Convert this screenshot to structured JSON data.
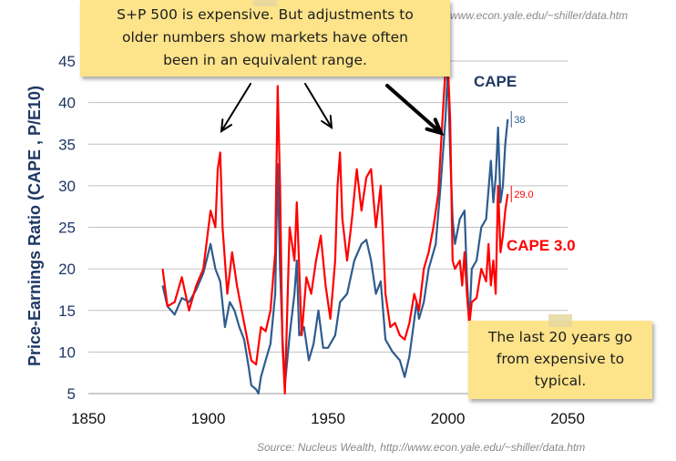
{
  "chart_data": {
    "type": "line",
    "title": "",
    "xlabel": "",
    "ylabel": "Price-Earnings Ratio (CAPE , P/E10)",
    "xlim": [
      1850,
      2050
    ],
    "ylim": [
      5,
      45
    ],
    "xticks": [
      "1850",
      "1900",
      "1950",
      "2000",
      "2050"
    ],
    "yticks": [
      "5",
      "10",
      "15",
      "20",
      "25",
      "30",
      "35",
      "40",
      "45"
    ],
    "grid": true,
    "series": [
      {
        "name": "CAPE",
        "color": "#2e5c8e",
        "end_label": "38",
        "points": [
          [
            1881,
            18
          ],
          [
            1883,
            15.5
          ],
          [
            1886,
            14.5
          ],
          [
            1889,
            16.5
          ],
          [
            1892,
            16
          ],
          [
            1895,
            17.5
          ],
          [
            1898,
            19.5
          ],
          [
            1901,
            23
          ],
          [
            1903,
            20
          ],
          [
            1905,
            18.5
          ],
          [
            1907,
            13
          ],
          [
            1909,
            16
          ],
          [
            1911,
            15
          ],
          [
            1913,
            13
          ],
          [
            1915,
            11.5
          ],
          [
            1917,
            8
          ],
          [
            1918,
            6
          ],
          [
            1920,
            5.5
          ],
          [
            1921,
            5
          ],
          [
            1922,
            7
          ],
          [
            1924,
            9
          ],
          [
            1926,
            11
          ],
          [
            1928,
            17
          ],
          [
            1929,
            32.6
          ],
          [
            1930,
            20
          ],
          [
            1931,
            12
          ],
          [
            1932,
            6
          ],
          [
            1934,
            12
          ],
          [
            1936,
            17
          ],
          [
            1937,
            21
          ],
          [
            1938,
            12
          ],
          [
            1940,
            13
          ],
          [
            1942,
            9
          ],
          [
            1944,
            11
          ],
          [
            1946,
            15
          ],
          [
            1948,
            10.5
          ],
          [
            1950,
            10.5
          ],
          [
            1953,
            12
          ],
          [
            1955,
            16
          ],
          [
            1958,
            17
          ],
          [
            1961,
            21
          ],
          [
            1964,
            23
          ],
          [
            1966,
            23.5
          ],
          [
            1968,
            21
          ],
          [
            1970,
            17
          ],
          [
            1972,
            18.5
          ],
          [
            1974,
            11.5
          ],
          [
            1977,
            10
          ],
          [
            1980,
            9
          ],
          [
            1982,
            7
          ],
          [
            1984,
            9.5
          ],
          [
            1987,
            16
          ],
          [
            1988,
            14
          ],
          [
            1990,
            16
          ],
          [
            1992,
            20
          ],
          [
            1995,
            23
          ],
          [
            1997,
            30
          ],
          [
            1999,
            38
          ],
          [
            2000,
            44
          ],
          [
            2001,
            34
          ],
          [
            2002,
            26
          ],
          [
            2003,
            23
          ],
          [
            2005,
            26
          ],
          [
            2007,
            27
          ],
          [
            2008,
            19
          ],
          [
            2009,
            13.3
          ],
          [
            2010,
            20
          ],
          [
            2012,
            21
          ],
          [
            2014,
            25
          ],
          [
            2016,
            26
          ],
          [
            2018,
            33
          ],
          [
            2019,
            28
          ],
          [
            2020,
            31
          ],
          [
            2021,
            37
          ],
          [
            2022,
            28
          ],
          [
            2023,
            30
          ],
          [
            2024,
            35
          ],
          [
            2025,
            38
          ]
        ]
      },
      {
        "name": "CAPE 3.0",
        "color": "#ff0000",
        "end_label": "29.0",
        "points": [
          [
            1881,
            20
          ],
          [
            1883,
            15.5
          ],
          [
            1886,
            16
          ],
          [
            1889,
            19
          ],
          [
            1892,
            15
          ],
          [
            1895,
            18
          ],
          [
            1898,
            20
          ],
          [
            1901,
            27
          ],
          [
            1903,
            25
          ],
          [
            1904,
            32
          ],
          [
            1905,
            34
          ],
          [
            1906,
            25
          ],
          [
            1908,
            17
          ],
          [
            1910,
            22
          ],
          [
            1912,
            18
          ],
          [
            1914,
            15
          ],
          [
            1916,
            12
          ],
          [
            1918,
            9
          ],
          [
            1920,
            8.5
          ],
          [
            1922,
            13
          ],
          [
            1924,
            12.5
          ],
          [
            1926,
            15
          ],
          [
            1928,
            22
          ],
          [
            1929,
            42
          ],
          [
            1930,
            30
          ],
          [
            1931,
            11
          ],
          [
            1932,
            5
          ],
          [
            1933,
            15
          ],
          [
            1934,
            25
          ],
          [
            1936,
            21
          ],
          [
            1937,
            28
          ],
          [
            1939,
            12
          ],
          [
            1941,
            19
          ],
          [
            1943,
            17
          ],
          [
            1945,
            21
          ],
          [
            1947,
            24
          ],
          [
            1949,
            18
          ],
          [
            1951,
            14
          ],
          [
            1953,
            21
          ],
          [
            1954,
            30
          ],
          [
            1955,
            34
          ],
          [
            1956,
            26
          ],
          [
            1958,
            21
          ],
          [
            1960,
            26
          ],
          [
            1962,
            32
          ],
          [
            1964,
            27
          ],
          [
            1966,
            31
          ],
          [
            1968,
            32
          ],
          [
            1970,
            25
          ],
          [
            1972,
            30
          ],
          [
            1974,
            17
          ],
          [
            1976,
            13
          ],
          [
            1978,
            13.5
          ],
          [
            1980,
            12
          ],
          [
            1982,
            11.5
          ],
          [
            1984,
            13.5
          ],
          [
            1986,
            17
          ],
          [
            1988,
            15
          ],
          [
            1990,
            20
          ],
          [
            1992,
            22
          ],
          [
            1994,
            25
          ],
          [
            1996,
            29
          ],
          [
            1998,
            39
          ],
          [
            1999,
            44
          ],
          [
            2000,
            45
          ],
          [
            2001,
            38
          ],
          [
            2002,
            21
          ],
          [
            2003,
            20
          ],
          [
            2005,
            21
          ],
          [
            2006,
            18
          ],
          [
            2007,
            22
          ],
          [
            2008,
            17
          ],
          [
            2009,
            13.3
          ],
          [
            2010,
            16
          ],
          [
            2012,
            16.5
          ],
          [
            2014,
            20
          ],
          [
            2016,
            18.5
          ],
          [
            2017,
            23
          ],
          [
            2018,
            18
          ],
          [
            2019,
            21
          ],
          [
            2020,
            17
          ],
          [
            2021,
            30
          ],
          [
            2022,
            22
          ],
          [
            2023,
            24
          ],
          [
            2024,
            27
          ],
          [
            2025,
            29
          ]
        ]
      }
    ],
    "series_labels": [
      {
        "text": "CAPE",
        "color": "#1f3864"
      },
      {
        "text": "CAPE 3.0",
        "color": "#ff0000"
      }
    ]
  },
  "annotations": {
    "top_note": "S+P 500 is expensive. But adjustments to older numbers show markets have often been in an equivalent range.",
    "top_note_lines": [
      "S+P 500 is expensive. But adjustments to",
      "older numbers show markets have often",
      "been in an equivalent range."
    ],
    "bottom_note_lines": [
      "The last 20 years go",
      "from expensive to",
      "typical."
    ],
    "source_top": "www.econ.yale.edu/~shiller/data.htm",
    "source_bottom": "Source:  Nucleus Wealth, http://www.econ.yale.edu/~shiller/data.htm"
  },
  "colors": {
    "axis_label": "#1f3864",
    "note_fill": "#fde38a",
    "grid": "#c0c0c0"
  }
}
